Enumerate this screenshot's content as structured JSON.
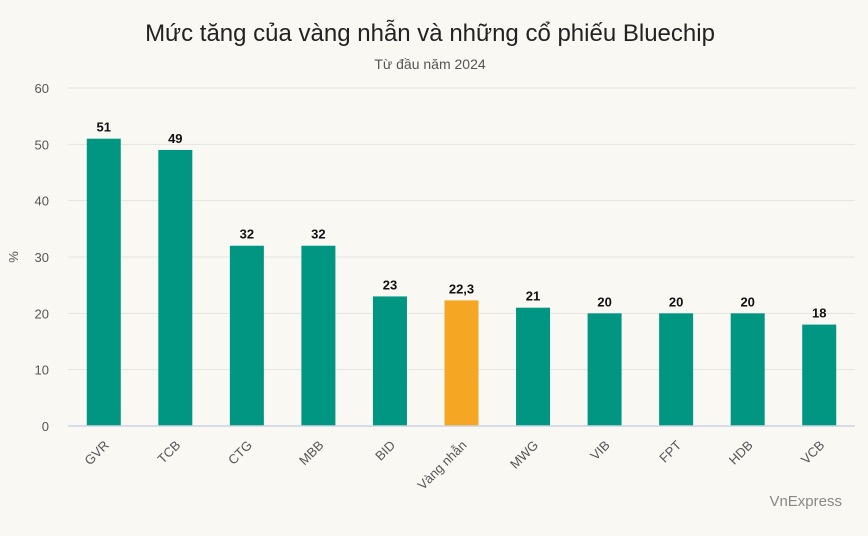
{
  "chart_data": {
    "type": "bar",
    "title": "Mức tăng của vàng nhẫn và những cổ phiếu Bluechip",
    "subtitle": "Từ đầu năm 2024",
    "ylabel": "%",
    "xlabel": "",
    "ylim": [
      0,
      60
    ],
    "yticks": [
      0,
      10,
      20,
      30,
      40,
      50,
      60
    ],
    "grid": true,
    "categories": [
      "GVR",
      "TCB",
      "CTG",
      "MBB",
      "BID",
      "Vàng nhẫn",
      "MWG",
      "VIB",
      "FPT",
      "HDB",
      "VCB"
    ],
    "values": [
      51,
      49,
      32,
      32,
      23,
      22.3,
      21,
      20,
      20,
      20,
      18
    ],
    "value_labels": [
      "51",
      "49",
      "32",
      "32",
      "23",
      "22,3",
      "21",
      "20",
      "20",
      "20",
      "18"
    ],
    "colors": {
      "default": "#009682",
      "highlight": "#f5a623",
      "highlight_index": 5,
      "grid": "#e3e3e3",
      "axis": "#c9d3e6"
    }
  },
  "source": "VnExpress"
}
